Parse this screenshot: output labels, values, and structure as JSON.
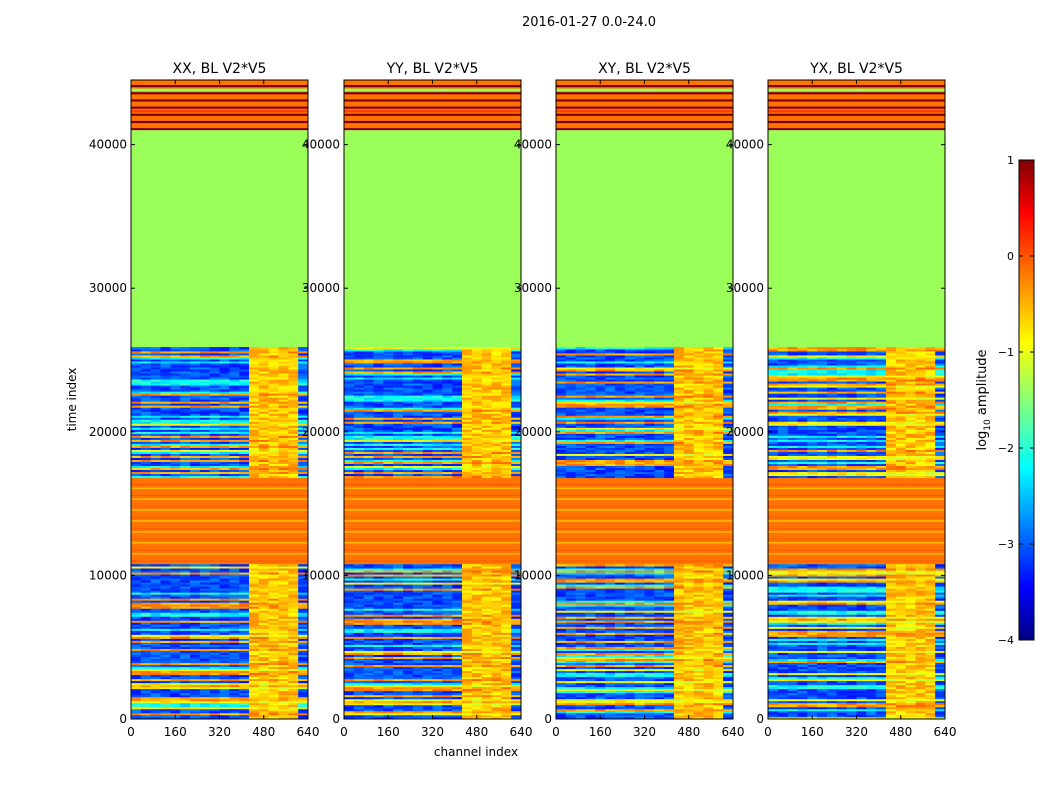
{
  "figure": {
    "suptitle": "2016-01-27 0.0-24.0"
  },
  "colors": {
    "colormap": "jet",
    "green_fill": "#9bff5a",
    "orange_band": "#ff7400",
    "dark_red_band": "#800000"
  },
  "chart_data": [
    {
      "type": "heatmap",
      "title": "XX, BL V2*V5",
      "xlabel": "",
      "ylabel": "time index",
      "xlim": [
        0,
        640
      ],
      "ylim": [
        0,
        44500
      ],
      "xticks": [
        "0",
        "160",
        "320",
        "480",
        "640"
      ],
      "yticks": [
        "0",
        "10000",
        "20000",
        "30000",
        "40000"
      ],
      "colormap": "jet",
      "color_range_log10": [
        -4,
        1
      ],
      "time_segments": [
        {
          "t_start": 0,
          "t_end": 10700,
          "description": "noisy with bright band channels 400-600"
        },
        {
          "t_start": 10700,
          "t_end": 16800,
          "description": "orange/yellow striped"
        },
        {
          "t_start": 16800,
          "t_end": 25800,
          "description": "noisy with bright band channels 400-600"
        },
        {
          "t_start": 25800,
          "t_end": 41000,
          "level_log10": -1.15
        },
        {
          "t_start": 41000,
          "t_end": 44500,
          "description": "orange / dark red stripes"
        }
      ]
    },
    {
      "type": "heatmap",
      "title": "YY, BL V2*V5",
      "xlabel": "channel index",
      "ylabel": "",
      "xlim": [
        0,
        640
      ],
      "ylim": [
        0,
        44500
      ],
      "xticks": [
        "0",
        "160",
        "320",
        "480",
        "640"
      ],
      "yticks": [
        "0",
        "10000",
        "20000",
        "30000",
        "40000"
      ],
      "colormap": "jet",
      "color_range_log10": [
        -4,
        1
      ]
    },
    {
      "type": "heatmap",
      "title": "XY, BL V2*V5",
      "xlabel": "",
      "ylabel": "",
      "xlim": [
        0,
        640
      ],
      "ylim": [
        0,
        44500
      ],
      "xticks": [
        "0",
        "160",
        "320",
        "480",
        "640"
      ],
      "yticks": [
        "0",
        "10000",
        "20000",
        "30000",
        "40000"
      ],
      "colormap": "jet",
      "color_range_log10": [
        -4,
        1
      ]
    },
    {
      "type": "heatmap",
      "title": "YX, BL V2*V5",
      "xlabel": "",
      "ylabel": "",
      "xlim": [
        0,
        640
      ],
      "ylim": [
        0,
        44500
      ],
      "xticks": [
        "0",
        "160",
        "320",
        "480",
        "640"
      ],
      "yticks": [
        "0",
        "10000",
        "20000",
        "30000",
        "40000"
      ],
      "colormap": "jet",
      "color_range_log10": [
        -4,
        1
      ]
    }
  ],
  "colorbar": {
    "label": "log10 amplitude",
    "label_base": "log",
    "label_sub": "10",
    "label_rest": " amplitude",
    "range": [
      -4,
      1
    ],
    "ticks": [
      "1",
      "0",
      "−1",
      "−2",
      "−3",
      "−4"
    ]
  }
}
